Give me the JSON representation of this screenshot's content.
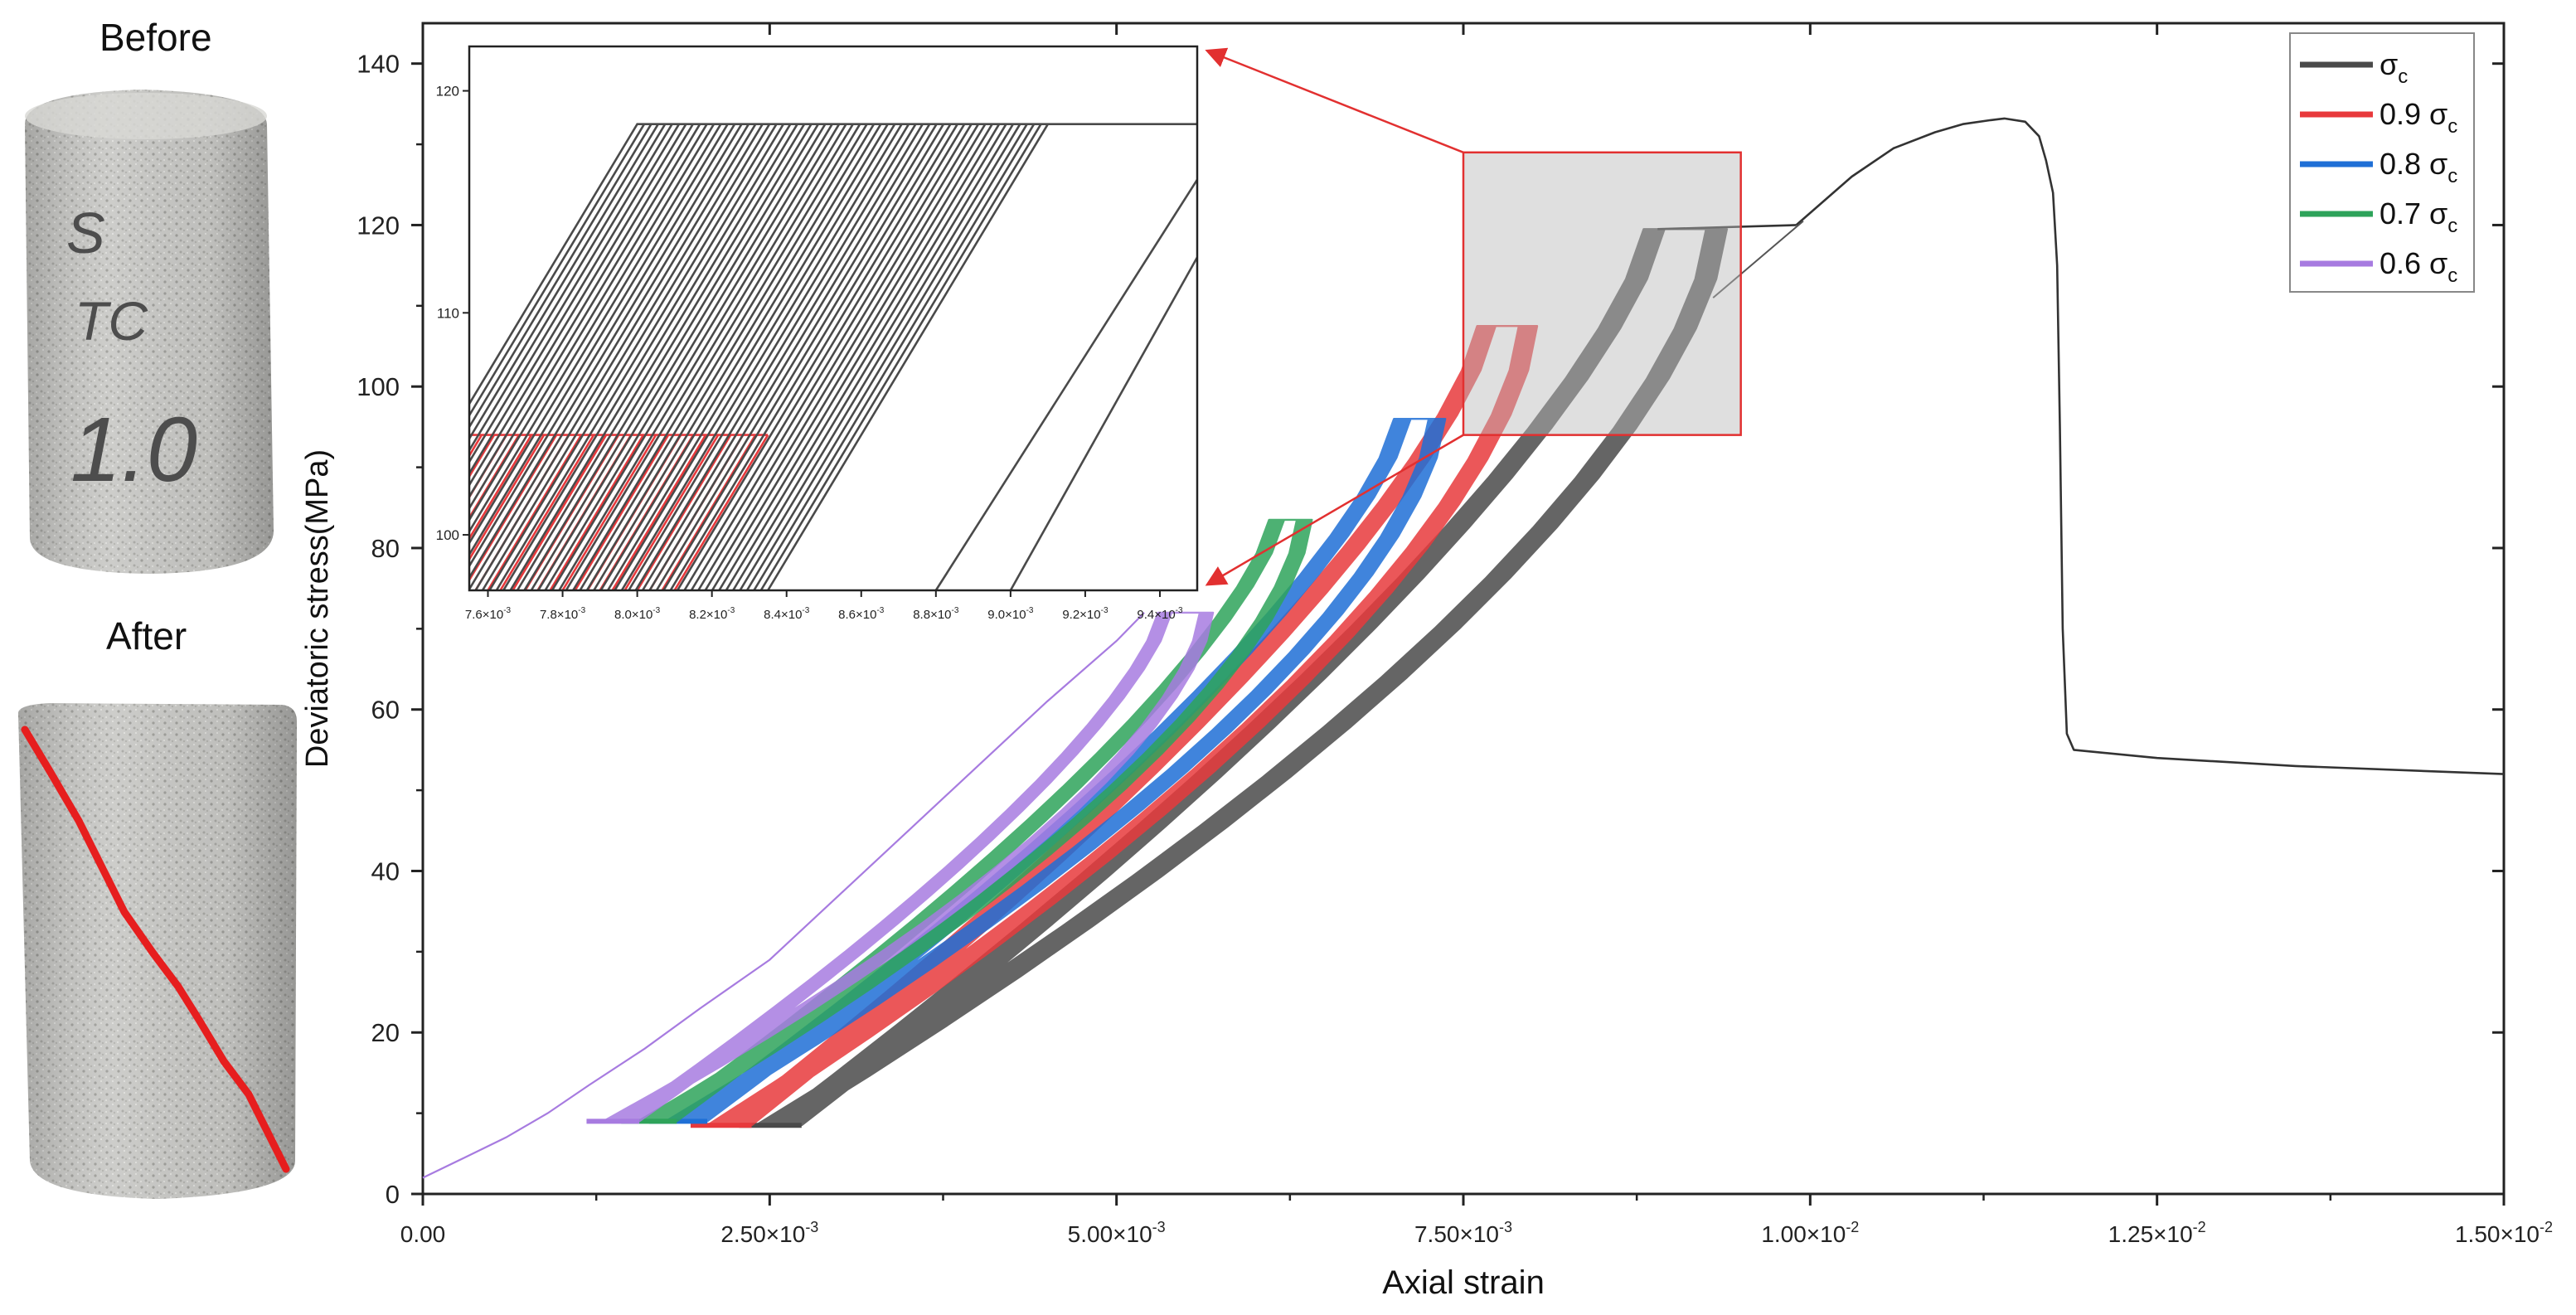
{
  "photos": {
    "before_label": "Before",
    "after_label": "After",
    "specimen_marking": [
      "S",
      "TC",
      "1.0"
    ]
  },
  "colors": {
    "sigma_c": "#4a4a4a",
    "s09": "#e8393c",
    "s08": "#1f6fd6",
    "s07": "#2ea35a",
    "s06": "#a77be0",
    "crack": "#e61e1e",
    "inset_arrow": "#e23030"
  },
  "chart_data": [
    {
      "type": "line",
      "title": "",
      "xlabel": "Axial strain",
      "ylabel": "Deviatoric stress(MPa)",
      "xlim": [
        0,
        0.015
      ],
      "ylim": [
        0,
        145
      ],
      "x_ticks": [
        0,
        0.0025,
        0.005,
        0.0075,
        0.01,
        0.0125,
        0.015
      ],
      "x_tick_mantissa": [
        "0.00",
        "2.50×10",
        "5.00×10",
        "7.50×10",
        "1.00×10",
        "1.25×10",
        "1.50×10"
      ],
      "x_tick_exponent": [
        "",
        "-3",
        "-3",
        "-3",
        "-2",
        "-2",
        "-2"
      ],
      "y_ticks": [
        0,
        20,
        40,
        60,
        80,
        100,
        120,
        140
      ],
      "y_tick_labels": [
        "0",
        "20",
        "40",
        "60",
        "80",
        "100",
        "120",
        "140"
      ],
      "legend_position": "top-right",
      "legend": [
        {
          "base": "σ",
          "prefix": "",
          "sub": "c",
          "color_key": "sigma_c"
        },
        {
          "base": "σ",
          "prefix": "0.9 ",
          "sub": "c",
          "color_key": "s09"
        },
        {
          "base": "σ",
          "prefix": "0.8 ",
          "sub": "c",
          "color_key": "s08"
        },
        {
          "base": "σ",
          "prefix": "0.7 ",
          "sub": "c",
          "color_key": "s07"
        },
        {
          "base": "σ",
          "prefix": "0.6 ",
          "sub": "c",
          "color_key": "s06"
        }
      ],
      "series": [
        {
          "name": "σc",
          "color_key": "sigma_c",
          "role": "monotonic",
          "x": [
            0.0099,
            0.0103,
            0.0106,
            0.0109,
            0.0111,
            0.0113,
            0.0114,
            0.01155,
            0.01165,
            0.0117,
            0.01175,
            0.01178,
            0.0118,
            0.01182,
            0.01185,
            0.0119,
            0.0125,
            0.0135,
            0.015
          ],
          "y": [
            120,
            126,
            129.5,
            131.5,
            132.5,
            133,
            133.2,
            132.8,
            131,
            128,
            124,
            115,
            95,
            70,
            57,
            55,
            54,
            53,
            52
          ]
        },
        {
          "name": "σc",
          "color_key": "sigma_c",
          "role": "cyclic",
          "loops": 120,
          "min_stress": 8.5,
          "max_stress": 119.5,
          "unload_x_start": 0.00248,
          "unload_x_end": 0.0088,
          "reload_x_start": 0.0024,
          "reload_x_end": 0.00925,
          "band_width": 0.00025,
          "cycle_gain": 0.0
        },
        {
          "name": "0.9 σc",
          "color_key": "s09",
          "role": "cyclic",
          "loops": 120,
          "min_stress": 8.5,
          "max_stress": 107.5,
          "unload_x_start": 0.00215,
          "unload_x_end": 0.0076,
          "reload_x_start": 0.00205,
          "reload_x_end": 0.0079,
          "band_width": 0.00022,
          "cycle_gain": 0.0
        },
        {
          "name": "0.8 σc",
          "color_key": "s08",
          "role": "cyclic",
          "loops": 120,
          "min_stress": 9.0,
          "max_stress": 96,
          "unload_x_start": 0.00185,
          "unload_x_end": 0.007,
          "reload_x_start": 0.00175,
          "reload_x_end": 0.00725,
          "band_width": 0.0002,
          "cycle_gain": 0.0
        },
        {
          "name": "0.7 σc",
          "color_key": "s07",
          "role": "cyclic",
          "loops": 120,
          "min_stress": 9.0,
          "max_stress": 83.5,
          "unload_x_start": 0.00165,
          "unload_x_end": 0.0061,
          "reload_x_start": 0.00155,
          "reload_x_end": 0.0063,
          "band_width": 0.00018,
          "cycle_gain": 0.0
        },
        {
          "name": "0.6 σc",
          "color_key": "s06",
          "role": "cyclic",
          "loops": 120,
          "min_stress": 9.0,
          "max_stress": 72,
          "unload_x_start": 0.0014,
          "unload_x_end": 0.0053,
          "reload_x_start": 0.0013,
          "reload_x_end": 0.0056,
          "band_width": 0.00016,
          "cycle_gain": 0.0
        },
        {
          "name": "0.6 σc",
          "color_key": "s06",
          "role": "initial_loading",
          "x": [
            0,
            0.0003,
            0.0006,
            0.0009,
            0.0012,
            0.0016,
            0.002,
            0.0025,
            0.003,
            0.0035,
            0.004,
            0.0045,
            0.005,
            0.0052
          ],
          "y": [
            2,
            4.5,
            7,
            10,
            13.5,
            18,
            23,
            29,
            37,
            45,
            53,
            61,
            68.5,
            72
          ]
        }
      ],
      "zoom_box": {
        "x": [
          0.0075,
          0.0095
        ],
        "y": [
          94,
          129
        ]
      }
    },
    {
      "type": "line",
      "title": "",
      "role": "inset_zoom",
      "xlim": [
        0.00755,
        0.0095
      ],
      "ylim": [
        97.5,
        122
      ],
      "x_ticks": [
        0.0076,
        0.0078,
        0.008,
        0.0082,
        0.0084,
        0.0086,
        0.0088,
        0.009,
        0.0092,
        0.0094
      ],
      "x_tick_mantissa": [
        "7.6×10",
        "7.8×10",
        "8.0×10",
        "8.2×10",
        "8.4×10",
        "8.6×10",
        "8.8×10",
        "9.0×10",
        "9.2×10",
        "9.4×10"
      ],
      "x_tick_exponent": [
        "-3",
        "-3",
        "-3",
        "-3",
        "-3",
        "-3",
        "-3",
        "-3",
        "-3",
        "-3"
      ],
      "y_ticks": [
        100,
        110,
        120
      ],
      "y_tick_labels": [
        "100",
        "110",
        "120"
      ],
      "series": [
        {
          "name": "0.9 σc",
          "color_key": "s09",
          "plateau_y": 104.5,
          "plateau_x_end": 0.00835,
          "left_x": 0.00755,
          "slope_dy_dx": 28000,
          "lines": 34
        },
        {
          "name": "σc",
          "color_key": "sigma_c",
          "plateau_y": 118.5,
          "plateau_x_end": 0.0095,
          "left_x": 0.0078,
          "slope_dy_dx": 28000,
          "lines": 60
        }
      ]
    }
  ]
}
